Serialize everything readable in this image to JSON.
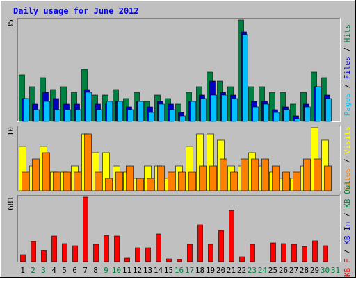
{
  "chart_data": {
    "type": "bar",
    "title": "Daily usage for June 2012",
    "categories": [
      "1",
      "2",
      "3",
      "4",
      "5",
      "6",
      "7",
      "8",
      "9",
      "10",
      "11",
      "12",
      "13",
      "14",
      "15",
      "16",
      "17",
      "18",
      "19",
      "20",
      "21",
      "22",
      "23",
      "24",
      "25",
      "26",
      "27",
      "28",
      "29",
      "30",
      "31"
    ],
    "weekend_days": [
      2,
      3,
      9,
      10,
      16,
      17,
      23,
      24,
      30,
      31
    ],
    "panels": [
      {
        "id": "hits-files-pages",
        "ymax_label": "35",
        "ymax": 35,
        "axis_label": [
          "Pages",
          " / ",
          "Files",
          " / ",
          "Hits"
        ],
        "axis_label_colors": [
          "#00c0ff",
          "#000000",
          "#0000c0",
          "#000000",
          "#008040"
        ],
        "series": [
          {
            "name": "Hits",
            "color": "#008040",
            "values": [
              16,
              12,
              15,
              11,
              12,
              10,
              18,
              9,
              9,
              11,
              8,
              10,
              7,
              9,
              8,
              6,
              10,
              12,
              17,
              14,
              12,
              35,
              12,
              12,
              10,
              10,
              6,
              10,
              17,
              15,
              0
            ]
          },
          {
            "name": "Files",
            "color": "#0000c0",
            "values": [
              8,
              6,
              10,
              8,
              6,
              6,
              11,
              6,
              6,
              7,
              5,
              7,
              5,
              7,
              6,
              3,
              7,
              9,
              14,
              10,
              9,
              31,
              7,
              7,
              4,
              5,
              2,
              6,
              12,
              9,
              0
            ]
          },
          {
            "name": "Pages",
            "color": "#00c0ff",
            "values": [
              8,
              4,
              7,
              4,
              4,
              4,
              10,
              4,
              7,
              7,
              4,
              7,
              3,
              6,
              4,
              2,
              7,
              8,
              9,
              9,
              8,
              30,
              5,
              6,
              3,
              4,
              1,
              5,
              12,
              8,
              0
            ]
          }
        ]
      },
      {
        "id": "visits-sites",
        "ymax_label": "10",
        "ymax": 10,
        "axis_label": [
          "Sites",
          " / ",
          "Visits"
        ],
        "axis_label_colors": [
          "#ff8000",
          "#000000",
          "#ffff00"
        ],
        "series": [
          {
            "name": "Visits",
            "color": "#ffff00",
            "values": [
              7,
              4,
              7,
              3,
              3,
              4,
              9,
              6,
              6,
              4,
              3,
              2,
              4,
              4,
              2,
              4,
              7,
              9,
              9,
              8,
              4,
              4,
              6,
              4,
              3,
              2,
              2,
              4,
              10,
              8,
              0
            ]
          },
          {
            "name": "Sites",
            "color": "#ff8000",
            "values": [
              3,
              5,
              6,
              3,
              3,
              3,
              9,
              3,
              2,
              3,
              4,
              2,
              2,
              4,
              3,
              3,
              3,
              4,
              4,
              5,
              3,
              5,
              5,
              5,
              4,
              3,
              3,
              5,
              5,
              4,
              0
            ]
          }
        ]
      },
      {
        "id": "kbytes",
        "ymax_label": "681",
        "ymax": 681,
        "axis_label": [
          "KB F",
          " / ",
          "KB In",
          " / ",
          "KB Out"
        ],
        "axis_label_colors": [
          "#ff0000",
          "#000000",
          "#0000c0",
          "#000000",
          "#008040"
        ],
        "series": [
          {
            "name": "KB F",
            "color": "#ff0000",
            "values": [
              70,
              210,
              115,
              270,
              190,
              170,
              680,
              180,
              280,
              270,
              40,
              150,
              150,
              295,
              30,
              20,
              180,
              390,
              180,
              330,
              540,
              50,
              180,
              0,
              200,
              190,
              180,
              160,
              220,
              170,
              0
            ]
          }
        ]
      }
    ],
    "grid": false,
    "legend": "right-vertical"
  }
}
